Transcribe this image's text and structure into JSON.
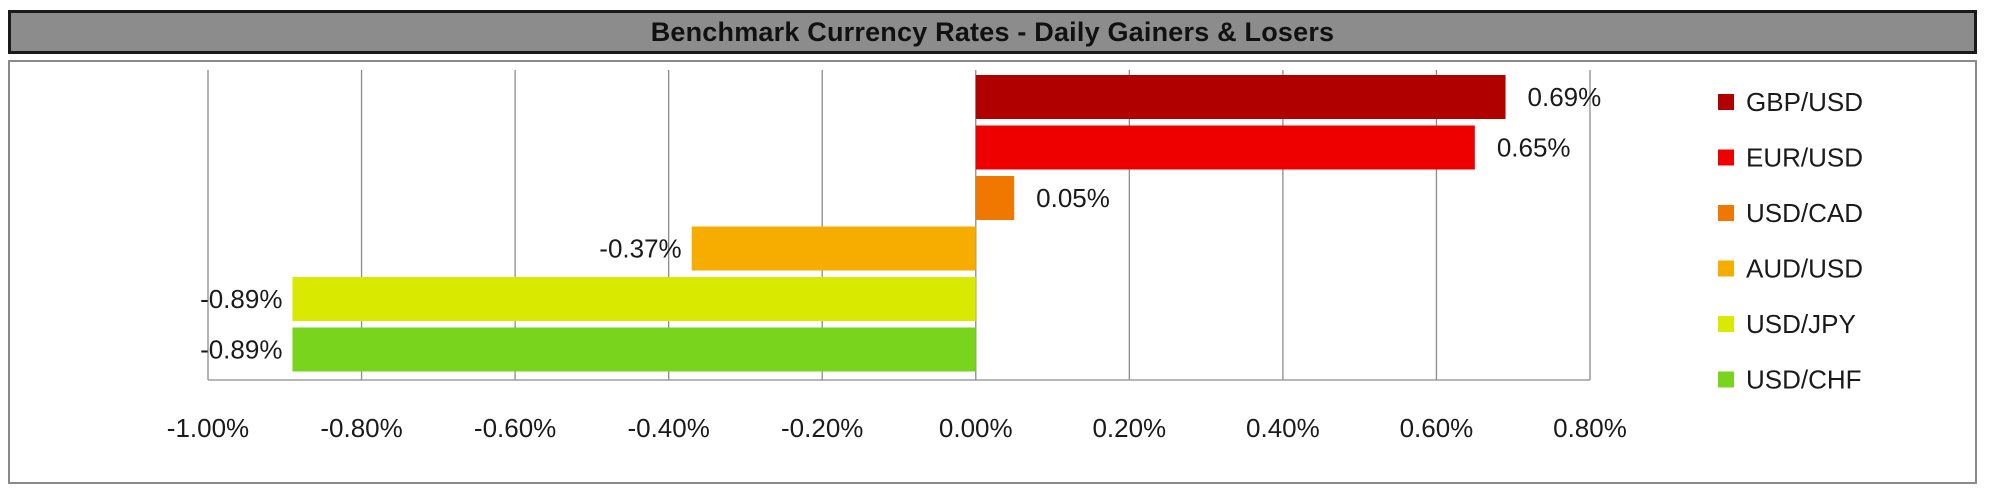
{
  "chart_data": {
    "type": "bar",
    "orientation": "horizontal",
    "title": "Benchmark Currency Rates - Daily Gainers & Losers",
    "categories": [
      "GBP/USD",
      "EUR/USD",
      "USD/CAD",
      "AUD/USD",
      "USD/JPY",
      "USD/CHF"
    ],
    "values": [
      0.69,
      0.65,
      0.05,
      -0.37,
      -0.89,
      -0.89
    ],
    "value_labels": [
      "0.69%",
      "0.65%",
      "0.05%",
      "-0.37%",
      "-0.89%",
      "-0.89%"
    ],
    "colors": [
      "#b00000",
      "#ee0000",
      "#f07800",
      "#f7ac00",
      "#d9ea00",
      "#78d41c"
    ],
    "xlim": [
      -1.0,
      0.8
    ],
    "xticks": [
      -1.0,
      -0.8,
      -0.6,
      -0.4,
      -0.2,
      0.0,
      0.2,
      0.4,
      0.6,
      0.8
    ],
    "xtick_labels": [
      "-1.00%",
      "-0.80%",
      "-0.60%",
      "-0.40%",
      "-0.20%",
      "0.00%",
      "0.20%",
      "0.40%",
      "0.60%",
      "0.80%"
    ],
    "grid": "vertical",
    "legend_position": "right",
    "xlabel": "",
    "ylabel": ""
  },
  "colors": {
    "title_bar": "#8c8c8c",
    "title_border": "#1a1a1a",
    "frame_border": "#8a8a8a",
    "gridline": "#8c8c8c"
  }
}
